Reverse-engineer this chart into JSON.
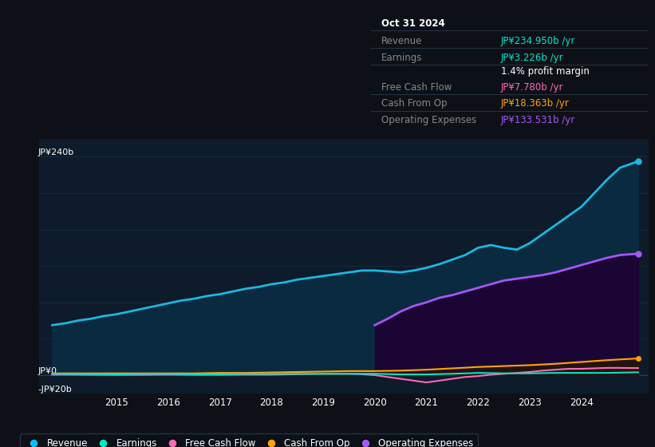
{
  "bg_color": "#0d1117",
  "plot_bg_color": "#0d1b2a",
  "ylabel_top": "JP¥240b",
  "ylabel_zero": "JP¥0",
  "ylabel_neg": "-JP¥20b",
  "ylim": [
    -20,
    260
  ],
  "xlim_start": 2013.5,
  "xlim_end": 2025.3,
  "xticks": [
    2015,
    2016,
    2017,
    2018,
    2019,
    2020,
    2021,
    2022,
    2023,
    2024
  ],
  "legend_items": [
    "Revenue",
    "Earnings",
    "Free Cash Flow",
    "Cash From Op",
    "Operating Expenses"
  ],
  "legend_colors": [
    "#00bfff",
    "#00e5cc",
    "#ff69b4",
    "#ffa500",
    "#a855f7"
  ],
  "info_box": {
    "date": "Oct 31 2024",
    "revenue_label": "Revenue",
    "revenue": "JP¥234.950b /yr",
    "earnings_label": "Earnings",
    "earnings": "JP¥3.226b /yr",
    "profit_margin": "1.4% profit margin",
    "fcf_label": "Free Cash Flow",
    "free_cash_flow": "JP¥7.780b /yr",
    "cfo_label": "Cash From Op",
    "cash_from_op": "JP¥18.363b /yr",
    "opex_label": "Operating Expenses",
    "operating_expenses": "JP¥133.531b /yr",
    "revenue_color": "#00e5cc",
    "earnings_color": "#00e5cc",
    "profit_margin_color": "#ffffff",
    "fcf_color": "#ff69b4",
    "cfo_color": "#ffa500",
    "opex_color": "#a855f7",
    "label_color": "#888888",
    "bg_color": "#0d1117",
    "border_color": "#2a3a4a"
  },
  "revenue": {
    "years": [
      2013.75,
      2014.0,
      2014.25,
      2014.5,
      2014.75,
      2015.0,
      2015.25,
      2015.5,
      2015.75,
      2016.0,
      2016.25,
      2016.5,
      2016.75,
      2017.0,
      2017.25,
      2017.5,
      2017.75,
      2018.0,
      2018.25,
      2018.5,
      2018.75,
      2019.0,
      2019.25,
      2019.5,
      2019.75,
      2020.0,
      2020.25,
      2020.5,
      2020.75,
      2021.0,
      2021.25,
      2021.5,
      2021.75,
      2022.0,
      2022.25,
      2022.5,
      2022.75,
      2023.0,
      2023.25,
      2023.5,
      2023.75,
      2024.0,
      2024.25,
      2024.5,
      2024.75,
      2025.1
    ],
    "values": [
      55,
      57,
      60,
      62,
      65,
      67,
      70,
      73,
      76,
      79,
      82,
      84,
      87,
      89,
      92,
      95,
      97,
      100,
      102,
      105,
      107,
      109,
      111,
      113,
      115,
      115,
      114,
      113,
      115,
      118,
      122,
      127,
      132,
      140,
      143,
      140,
      138,
      145,
      155,
      165,
      175,
      185,
      200,
      215,
      228,
      235
    ],
    "color": "#1ab8e0",
    "fill_color": "#0a2a40",
    "linewidth": 2.0
  },
  "earnings": {
    "years": [
      2013.75,
      2014.0,
      2014.5,
      2015.0,
      2015.5,
      2016.0,
      2016.5,
      2017.0,
      2017.5,
      2018.0,
      2018.5,
      2019.0,
      2019.5,
      2020.0,
      2020.5,
      2021.0,
      2021.5,
      2022.0,
      2022.5,
      2023.0,
      2023.5,
      2024.0,
      2024.5,
      2025.1
    ],
    "values": [
      1.5,
      1.5,
      1.2,
      1.0,
      1.5,
      1.5,
      1.0,
      1.0,
      1.5,
      1.5,
      1.5,
      1.5,
      1.5,
      1.5,
      0.8,
      0.8,
      1.5,
      2.5,
      2.0,
      2.0,
      2.5,
      2.5,
      2.5,
      3.2
    ],
    "color": "#00e5cc",
    "linewidth": 1.5
  },
  "free_cash_flow": {
    "years": [
      2013.75,
      2014.0,
      2014.5,
      2015.0,
      2015.5,
      2016.0,
      2016.5,
      2017.0,
      2017.5,
      2018.0,
      2018.5,
      2019.0,
      2019.5,
      2019.75,
      2020.0,
      2020.25,
      2020.5,
      2020.75,
      2021.0,
      2021.25,
      2021.5,
      2021.75,
      2022.0,
      2022.25,
      2022.5,
      2022.75,
      2023.0,
      2023.25,
      2023.5,
      2023.75,
      2024.0,
      2024.25,
      2024.5,
      2024.75,
      2025.1
    ],
    "values": [
      0.5,
      0.5,
      0.3,
      0.2,
      0.3,
      0.5,
      0.3,
      0.3,
      0.5,
      0.5,
      1.0,
      1.5,
      1.5,
      1.0,
      0.0,
      -2.0,
      -4.0,
      -6.0,
      -8.0,
      -6.0,
      -4.0,
      -2.0,
      -1.0,
      0.5,
      1.5,
      2.5,
      3.5,
      5.0,
      6.0,
      7.0,
      7.0,
      7.5,
      8.0,
      8.0,
      7.8
    ],
    "color": "#ff69b4",
    "linewidth": 1.5
  },
  "cash_from_op": {
    "years": [
      2013.75,
      2014.0,
      2014.5,
      2015.0,
      2015.5,
      2016.0,
      2016.5,
      2017.0,
      2017.5,
      2018.0,
      2018.5,
      2019.0,
      2019.5,
      2020.0,
      2020.5,
      2021.0,
      2021.5,
      2022.0,
      2022.5,
      2023.0,
      2023.5,
      2024.0,
      2024.5,
      2025.1
    ],
    "values": [
      2.0,
      2.0,
      2.0,
      2.0,
      2.0,
      2.0,
      2.0,
      2.5,
      2.5,
      3.0,
      3.5,
      4.0,
      4.5,
      4.5,
      5.0,
      6.0,
      7.5,
      9.0,
      10.0,
      11.0,
      12.5,
      14.5,
      16.5,
      18.4
    ],
    "color": "#ffa500",
    "fill_color": "#2a1800",
    "linewidth": 1.5
  },
  "operating_expenses": {
    "years": [
      2020.0,
      2020.25,
      2020.5,
      2020.75,
      2021.0,
      2021.25,
      2021.5,
      2021.75,
      2022.0,
      2022.25,
      2022.5,
      2022.75,
      2023.0,
      2023.25,
      2023.5,
      2023.75,
      2024.0,
      2024.25,
      2024.5,
      2024.75,
      2025.1
    ],
    "values": [
      55,
      62,
      70,
      76,
      80,
      85,
      88,
      92,
      96,
      100,
      104,
      106,
      108,
      110,
      113,
      117,
      121,
      125,
      129,
      132,
      133.5
    ],
    "color": "#a855f7",
    "fill_color": "#1a0535",
    "linewidth": 2.0
  },
  "gridline_color": "#1a2d3d",
  "gridline_vals": [
    240,
    200,
    160,
    120,
    80,
    40,
    0,
    -20
  ],
  "zeroline_color": "#2a4050"
}
